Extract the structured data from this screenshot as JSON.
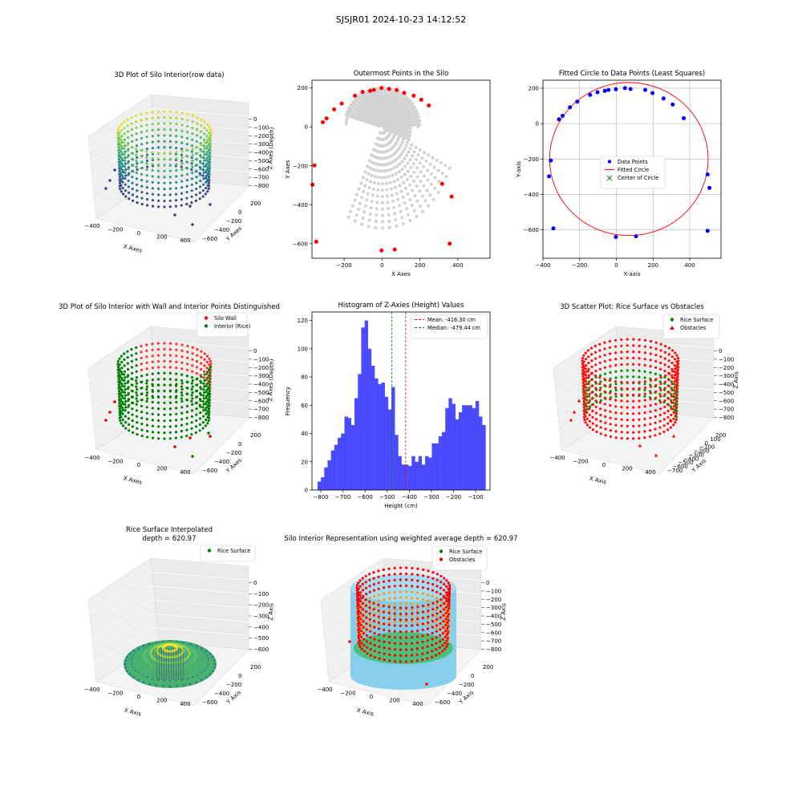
{
  "figure": {
    "title": "SJSJR01 2024-10-23 14:12:52"
  },
  "chart_data": [
    {
      "id": "p1",
      "type": "scatter",
      "projection": "3d",
      "title": "3D Plot of Silo Interior(row data)",
      "xlabel": "X Axes",
      "ylabel": "Y Axes",
      "zlabel": "Z Axes (Depth)",
      "x_ticks": [
        "−400",
        "−200",
        "0",
        "200",
        "400"
      ],
      "y_ticks": [
        "200",
        "0",
        "−200",
        "−400",
        "−600"
      ],
      "z_ticks": [
        "0",
        "−100",
        "−200",
        "−300",
        "−400",
        "−500",
        "−600",
        "−700",
        "−800"
      ],
      "colormap": "viridis"
    },
    {
      "id": "p2",
      "type": "scatter",
      "title": "Outermost Points in the Silo",
      "xlabel": "X Axes",
      "ylabel": "Y Axes",
      "xlim": [
        -370,
        570
      ],
      "ylim": [
        -675,
        240
      ],
      "x_ticks": [
        -200,
        0,
        200,
        400
      ],
      "y_ticks": [
        -600,
        -400,
        -200,
        0,
        200
      ],
      "x_tick_labels": [
        "−200",
        "0",
        "200",
        "400"
      ],
      "y_tick_labels": [
        "−600",
        "−400",
        "−200",
        "0",
        "200"
      ],
      "background_points_color": "#d3d3d3",
      "outer_points_color": "#ff0000",
      "outer_points": [
        [
          -357,
          -198
        ],
        [
          -367,
          -297
        ],
        [
          -347,
          -590
        ],
        [
          -313,
          24
        ],
        [
          -293,
          44
        ],
        [
          -253,
          90
        ],
        [
          -213,
          120
        ],
        [
          -143,
          160
        ],
        [
          -103,
          180
        ],
        [
          -63,
          185
        ],
        [
          -43,
          190
        ],
        [
          -3,
          200
        ],
        [
          37,
          195
        ],
        [
          77,
          190
        ],
        [
          117,
          175
        ],
        [
          167,
          160
        ],
        [
          207,
          140
        ],
        [
          247,
          110
        ],
        [
          317,
          -292
        ],
        [
          357,
          -600
        ],
        [
          367,
          -358
        ],
        [
          67,
          -630
        ],
        [
          -3,
          -635
        ]
      ]
    },
    {
      "id": "p3",
      "type": "scatter",
      "title": "Fitted Circle to Data Points (Least Squares)",
      "xlabel": "X-axis",
      "ylabel": "Y-axis",
      "xlim": [
        -400,
        570
      ],
      "ylim": [
        -760,
        245
      ],
      "x_ticks": [
        -400,
        -200,
        0,
        200,
        400
      ],
      "y_ticks": [
        -600,
        -400,
        -200,
        0,
        200
      ],
      "x_tick_labels": [
        "−400",
        "−200",
        "0",
        "200",
        "400"
      ],
      "y_tick_labels": [
        "−600",
        "−400",
        "−200",
        "0",
        "200"
      ],
      "grid": true,
      "legend": [
        "Data Points",
        "Fitted Circle",
        "Center of Circle"
      ],
      "circle": {
        "cx": 68,
        "cy": -200,
        "r": 432
      },
      "points_color": "#0000ff",
      "circle_color": "#ff0000",
      "center_color": "#008000",
      "points": [
        [
          -357,
          -208
        ],
        [
          -367,
          -298
        ],
        [
          -343,
          -591
        ],
        [
          -313,
          24
        ],
        [
          -293,
          44
        ],
        [
          -253,
          92
        ],
        [
          -213,
          124
        ],
        [
          -143,
          162
        ],
        [
          -103,
          177
        ],
        [
          -63,
          185
        ],
        [
          -43,
          190
        ],
        [
          -3,
          194
        ],
        [
          47,
          200
        ],
        [
          77,
          195
        ],
        [
          157,
          190
        ],
        [
          197,
          172
        ],
        [
          257,
          142
        ],
        [
          307,
          108
        ],
        [
          367,
          30
        ],
        [
          497,
          -287
        ],
        [
          507,
          -363
        ],
        [
          497,
          -605
        ],
        [
          107,
          -636
        ],
        [
          -3,
          -640
        ]
      ]
    },
    {
      "id": "p4",
      "type": "scatter",
      "projection": "3d",
      "title": "3D Plot of Silo Interior with Wall and Interior Points Distinguished",
      "xlabel": "X Axes",
      "ylabel": "Y Axes",
      "zlabel": "Z Axes (Depth)",
      "x_ticks": [
        "−400",
        "−200",
        "0",
        "200",
        "400"
      ],
      "y_ticks": [
        "200",
        "0",
        "−200",
        "−400",
        "−600"
      ],
      "z_ticks": [
        "0",
        "−100",
        "−200",
        "−300",
        "−400",
        "−500",
        "−600",
        "−700",
        "−800"
      ],
      "legend": [
        "Silo Wall",
        "Interior (Rice)"
      ],
      "series_colors": [
        "#ff0000",
        "#008000"
      ]
    },
    {
      "id": "p5",
      "type": "bar",
      "title": "Histogram of Z-Axies (Height) Values",
      "xlabel": "Height (cm)",
      "ylabel": "Frequency",
      "xlim": [
        -840,
        -35
      ],
      "ylim": [
        0,
        126
      ],
      "x_ticks": [
        -800,
        -700,
        -600,
        -500,
        -400,
        -300,
        -200,
        -100
      ],
      "y_ticks": [
        0,
        20,
        40,
        60,
        80,
        100,
        120
      ],
      "x_tick_labels": [
        "−800",
        "−700",
        "−600",
        "−500",
        "−400",
        "−300",
        "−200",
        "−100"
      ],
      "y_tick_labels": [
        "0",
        "20",
        "40",
        "60",
        "80",
        "100",
        "120"
      ],
      "bin_start": -815,
      "bin_width": 15.2,
      "counts": [
        6,
        9,
        16,
        21,
        28,
        32,
        37,
        40,
        52,
        51,
        46,
        65,
        82,
        115,
        120,
        100,
        88,
        79,
        75,
        76,
        66,
        57,
        73,
        39,
        24,
        18,
        18,
        17,
        24,
        20,
        24,
        18,
        24,
        23,
        33,
        33,
        38,
        41,
        58,
        65,
        61,
        50,
        55,
        60,
        60,
        60,
        58,
        63,
        52,
        46
      ],
      "bar_color": "#0000ff",
      "mean": -416.3,
      "median": -479.44,
      "legend": [
        "Mean: -416.30 cm",
        "Median: -479.44 cm"
      ]
    },
    {
      "id": "p6",
      "type": "scatter",
      "projection": "3d",
      "title": "3D Scatter Plot: Rice Surface vs Obstacles",
      "xlabel": "X Axis",
      "ylabel": "Y Axis",
      "zlabel": "Z Axis",
      "x_ticks": [
        "−400",
        "−200",
        "0",
        "200",
        "400"
      ],
      "y_ticks": [
        "200",
        "100",
        "0",
        "−100",
        "−200",
        "−300",
        "−400",
        "−500",
        "−600",
        "−700"
      ],
      "z_ticks": [
        "0",
        "−100",
        "−200",
        "−300",
        "−400",
        "−500",
        "−600",
        "−700",
        "−800"
      ],
      "legend": [
        "Rice Surface",
        "Obstacles"
      ],
      "series_colors": [
        "#008000",
        "#ff0000"
      ]
    },
    {
      "id": "p7",
      "type": "area",
      "projection": "3d",
      "title": "Rice Surface Interpolated",
      "subtitle": "depth = 620.97",
      "xlabel": "X Axis",
      "ylabel": "Y Axis",
      "zlabel": "Z Axis",
      "x_ticks": [
        "−400",
        "−200",
        "0",
        "200",
        "400"
      ],
      "y_ticks": [
        "200",
        "0",
        "−200",
        "−400",
        "−600"
      ],
      "z_ticks": [
        "0",
        "−100",
        "−200",
        "−300",
        "−400",
        "−500",
        "−600"
      ],
      "legend": [
        "Rice Surface"
      ],
      "series_colors": [
        "#008000"
      ]
    },
    {
      "id": "p8",
      "type": "scatter",
      "projection": "3d",
      "title": "Silo Interior Representation using weighted average depth = 620.97",
      "xlabel": "X Axis",
      "ylabel": "Y Axis",
      "zlabel": "Z Axis",
      "x_ticks": [
        "−400",
        "−200",
        "0",
        "200",
        "400"
      ],
      "y_ticks": [
        "200",
        "0",
        "−200",
        "−400",
        "−600"
      ],
      "z_ticks": [
        "0",
        "−100",
        "−200",
        "−300",
        "−400",
        "−500",
        "−600",
        "−700",
        "−800"
      ],
      "legend": [
        "Rice Surface",
        "Obstacles"
      ],
      "series_colors": [
        "#008000",
        "#ff0000"
      ],
      "cylinder_color": "#87ceeb"
    }
  ]
}
